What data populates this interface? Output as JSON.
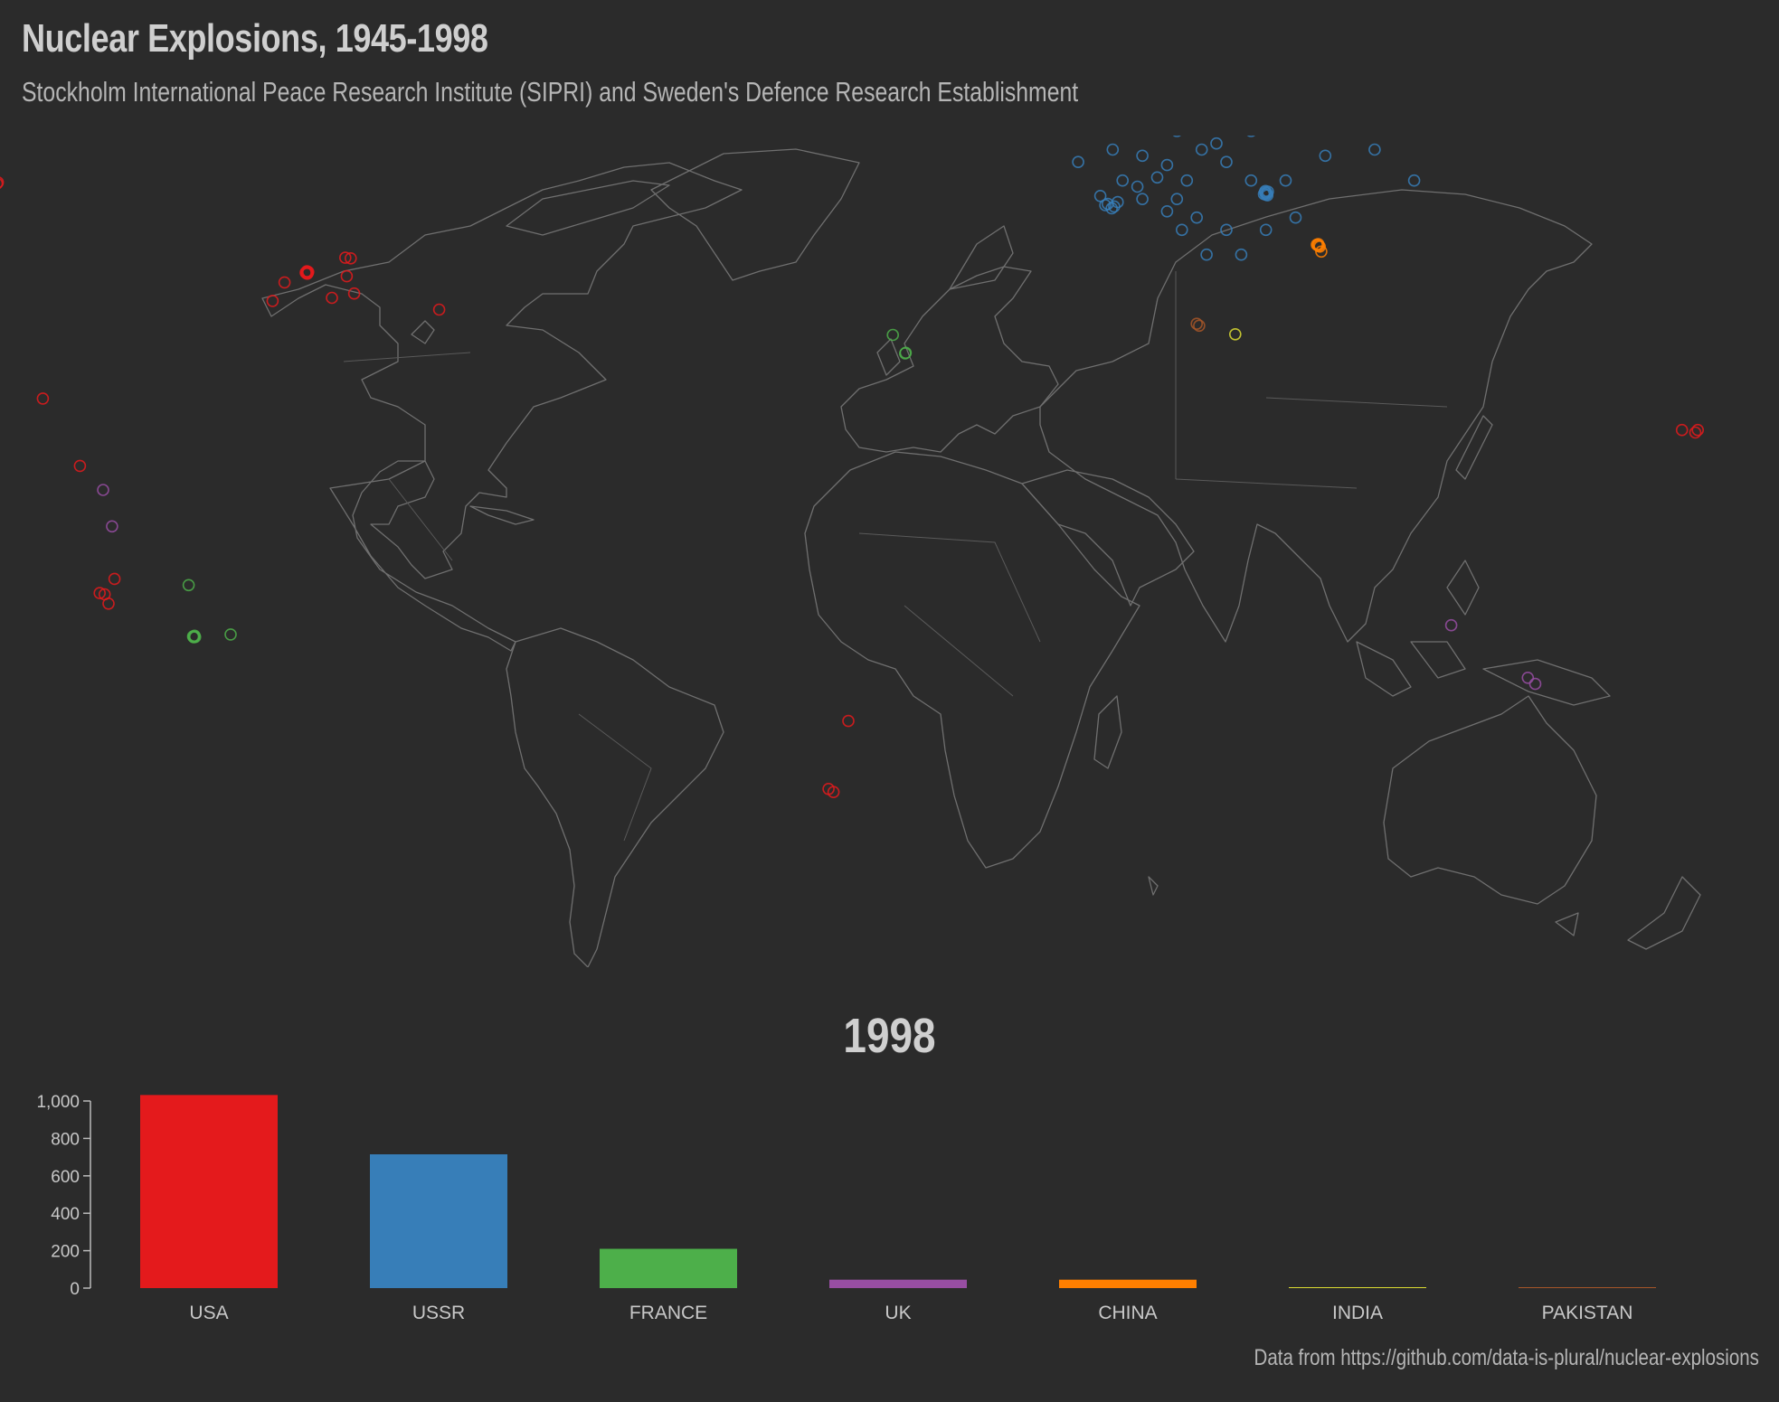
{
  "header": {
    "title": "Nuclear Explosions, 1945-1998",
    "subtitle": "Stockholm International Peace Research Institute (SIPRI) and Sweden's Defence Research Establishment"
  },
  "year_label": "1998",
  "source": "Data from https://github.com/data-is-plural/nuclear-explosions",
  "chart_data": [
    {
      "type": "scatter",
      "series": [
        {
          "name": "USA",
          "color": "#e41a1c",
          "points": [
            [
              -116.0,
              37.1
            ],
            [
              -116.1,
              37.2
            ],
            [
              -115.9,
              37.0
            ],
            [
              -116.2,
              37.0
            ],
            [
              -116.0,
              36.9
            ],
            [
              -115.8,
              37.2
            ],
            [
              -116.3,
              37.1
            ],
            [
              -116.05,
              37.3
            ],
            [
              -107.2,
              39.4
            ],
            [
              -108.0,
              36.5
            ],
            [
              -106.5,
              33.7
            ],
            [
              -108.3,
              39.5
            ],
            [
              -111.0,
              33.0
            ],
            [
              -89.3,
              31.1
            ],
            [
              -120.6,
              35.5
            ],
            [
              -123.0,
              32.5
            ],
            [
              -169.5,
              16.7
            ],
            [
              -162.0,
              5.8
            ],
            [
              -155.0,
              -12.5
            ],
            [
              -178.8,
              51.5
            ],
            [
              -178.6,
              51.7
            ],
            [
              162.2,
              11.6
            ],
            [
              165.4,
              11.6
            ],
            [
              164.9,
              11.2
            ],
            [
              -6.5,
              -35.5
            ],
            [
              -10.5,
              -46.5
            ],
            [
              -9.5,
              -47.0
            ],
            [
              -157.0,
              -15.0
            ],
            [
              -158.0,
              -14.8
            ],
            [
              -156.2,
              -16.5
            ]
          ]
        },
        {
          "name": "USSR",
          "color": "#377eb8",
          "points": [
            [
              52.5,
              73.5
            ],
            [
              53.0,
              73.2
            ],
            [
              54.5,
              73.4
            ],
            [
              55.0,
              72.8
            ],
            [
              54.0,
              72.5
            ],
            [
              53.5,
              73.7
            ],
            [
              55.5,
              73.0
            ],
            [
              56.0,
              72.2
            ],
            [
              56.2,
              71.8
            ],
            [
              78.0,
              50.0
            ],
            [
              78.2,
              49.9
            ],
            [
              77.8,
              50.1
            ],
            [
              78.4,
              50.2
            ],
            [
              78.0,
              49.7
            ],
            [
              77.6,
              49.8
            ],
            [
              78.3,
              49.6
            ],
            [
              77.9,
              50.3
            ],
            [
              46.0,
              48.2
            ],
            [
              47.3,
              47.8
            ],
            [
              45.5,
              48.0
            ],
            [
              48.0,
              48.5
            ],
            [
              46.8,
              47.5
            ],
            [
              64.0,
              64.5
            ],
            [
              72.0,
              64.0
            ],
            [
              84.0,
              62.0
            ],
            [
              96.0,
              61.0
            ],
            [
              105.0,
              62.0
            ],
            [
              110.0,
              63.0
            ],
            [
              112.0,
              61.5
            ],
            [
              118.0,
              66.0
            ],
            [
              118.0,
              64.0
            ],
            [
              90.0,
              66.0
            ],
            [
              86.0,
              64.0
            ],
            [
              75.0,
              60.0
            ],
            [
              60.0,
              60.0
            ],
            [
              55.0,
              61.5
            ],
            [
              47.0,
              57.0
            ],
            [
              40.0,
              55.0
            ],
            [
              35.0,
              62.0
            ],
            [
              33.0,
              67.5
            ],
            [
              50.0,
              63.0
            ],
            [
              65.0,
              57.0
            ],
            [
              70.0,
              55.0
            ],
            [
              75.0,
              52.0
            ],
            [
              82.0,
              52.0
            ],
            [
              68.0,
              58.0
            ],
            [
              62.0,
              52.0
            ],
            [
              56.0,
              52.5
            ],
            [
              52.0,
              51.0
            ],
            [
              58.0,
              54.5
            ],
            [
              44.5,
              49.5
            ],
            [
              61.0,
              44.0
            ],
            [
              64.0,
              46.0
            ],
            [
              70.0,
              44.0
            ],
            [
              66.0,
              40.0
            ],
            [
              73.0,
              40.0
            ],
            [
              78.0,
              44.0
            ],
            [
              53.0,
              56.0
            ],
            [
              87.0,
              69.0
            ],
            [
              78.0,
              71.0
            ],
            [
              72.0,
              68.0
            ],
            [
              90.0,
              56.0
            ],
            [
              100.0,
              57.0
            ],
            [
              108.0,
              52.0
            ],
            [
              57.0,
              64.5
            ],
            [
              46.0,
              63.0
            ],
            [
              63.0,
              69.0
            ],
            [
              53.0,
              49.0
            ],
            [
              58.0,
              47.0
            ],
            [
              84.0,
              46.0
            ],
            [
              49.0,
              52.0
            ],
            [
              69.0,
              60.5
            ],
            [
              80.0,
              68.0
            ],
            [
              60.0,
              49.0
            ]
          ]
        },
        {
          "name": "FRANCE",
          "color": "#4daf4a",
          "points": [
            [
              -138.9,
              -21.8
            ],
            [
              -139.0,
              -21.9
            ],
            [
              -138.8,
              -21.7
            ],
            [
              -139.1,
              -21.8
            ],
            [
              -138.95,
              -21.95
            ],
            [
              -138.7,
              -21.9
            ],
            [
              -140.0,
              -13.5
            ],
            [
              -131.5,
              -21.5
            ],
            [
              5.0,
              24.0
            ],
            [
              2.5,
              27.0
            ],
            [
              5.1,
              24.1
            ]
          ]
        },
        {
          "name": "UK",
          "color": "#984ea3",
          "points": [
            [
              115.5,
              -20.0
            ],
            [
              131.0,
              -28.5
            ],
            [
              132.5,
              -29.5
            ],
            [
              -157.3,
              1.9
            ],
            [
              -155.5,
              -4.0
            ]
          ]
        },
        {
          "name": "CHINA",
          "color": "#ff7f00",
          "points": [
            [
              88.5,
              41.5
            ],
            [
              88.7,
              41.4
            ],
            [
              88.3,
              41.6
            ],
            [
              88.9,
              41.3
            ],
            [
              89.2,
              40.5
            ],
            [
              88.6,
              41.7
            ]
          ]
        },
        {
          "name": "INDIA",
          "color": "#dcdc32",
          "points": [
            [
              71.8,
              27.1
            ]
          ]
        },
        {
          "name": "PAKISTAN",
          "color": "#a65628",
          "points": [
            [
              64.0,
              28.8
            ],
            [
              64.5,
              28.5
            ]
          ]
        }
      ]
    },
    {
      "type": "bar",
      "categories": [
        "USA",
        "USSR",
        "FRANCE",
        "UK",
        "CHINA",
        "INDIA",
        "PAKISTAN"
      ],
      "values": [
        1032,
        715,
        210,
        45,
        45,
        3,
        2
      ],
      "colors": [
        "#e41a1c",
        "#377eb8",
        "#4daf4a",
        "#984ea3",
        "#ff7f00",
        "#dcdc32",
        "#a65628"
      ],
      "ylim": [
        0,
        1000
      ],
      "yticks": [
        0,
        200,
        400,
        600,
        800,
        1000
      ],
      "ytick_labels": [
        "0",
        "200",
        "400",
        "600",
        "800",
        "1,000"
      ]
    }
  ]
}
